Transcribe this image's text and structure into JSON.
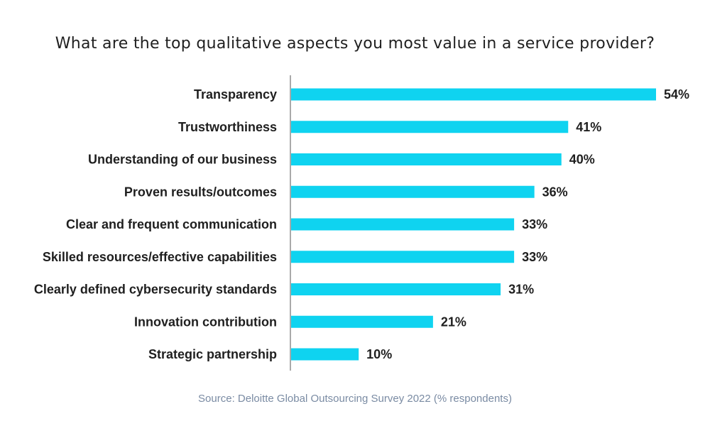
{
  "colors": {
    "bar": "#0fd3f0",
    "axis": "#555555",
    "text": "#1f1f1f",
    "source": "#7a8ba3"
  },
  "chart_data": {
    "type": "bar",
    "orientation": "horizontal",
    "title": "What are the top qualitative aspects you most value in a service provider?",
    "categories": [
      "Transparency",
      "Trustworthiness",
      "Understanding of our business",
      "Proven results/outcomes",
      "Clear and frequent communication",
      "Skilled resources/effective capabilities",
      "Clearly defined cybersecurity standards",
      "Innovation contribution",
      "Strategic partnership"
    ],
    "values": [
      54,
      41,
      40,
      36,
      33,
      33,
      31,
      21,
      10
    ],
    "value_labels": [
      "54%",
      "41%",
      "40%",
      "36%",
      "33%",
      "33%",
      "31%",
      "21%",
      "10%"
    ],
    "unit": "%",
    "xlim": [
      0,
      54
    ],
    "grid": false,
    "source": "Source: Deloitte Global Outsourcing Survey 2022 (% respondents)"
  }
}
